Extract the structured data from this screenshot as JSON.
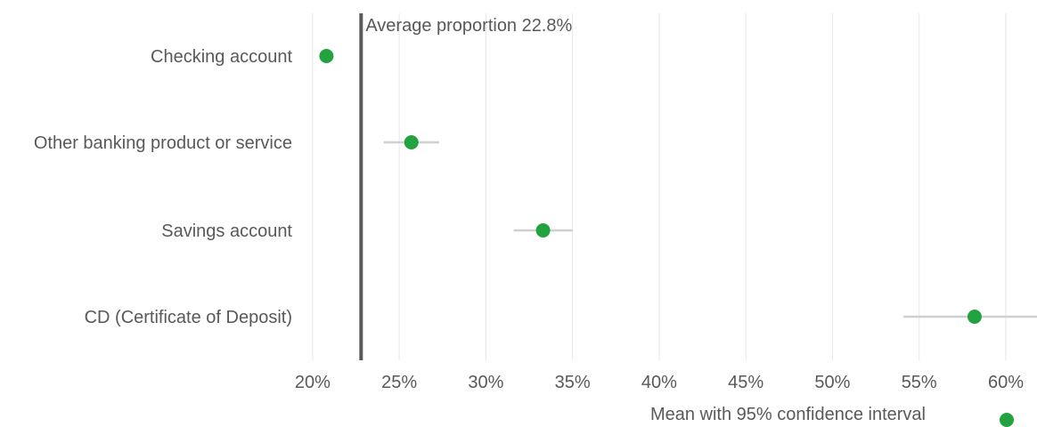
{
  "chart_data": {
    "type": "scatter",
    "categories": [
      "Checking account",
      "Other banking product or service",
      "Savings account",
      "CD (Certificate of Deposit)"
    ],
    "series": [
      {
        "name": "Mean with 95% confidence interval",
        "values": [
          20.8,
          25.7,
          33.3,
          58.2
        ],
        "ci_low": [
          20.8,
          24.1,
          31.6,
          54.1
        ],
        "ci_high": [
          20.8,
          27.3,
          35.0,
          61.8
        ]
      }
    ],
    "x_ticks": [
      "20%",
      "25%",
      "30%",
      "35%",
      "40%",
      "45%",
      "50%",
      "55%",
      "60%"
    ],
    "xlim": [
      17.9,
      61.8
    ],
    "reference_line": {
      "value": 22.8,
      "label": "Average proportion 22.8%"
    },
    "grid": true,
    "legend_position": "bottom-right"
  },
  "colors": {
    "point": "#23a240",
    "ci": "#d0d0d0",
    "reference": "#5a5a5a",
    "grid": "#e6e6e6"
  }
}
